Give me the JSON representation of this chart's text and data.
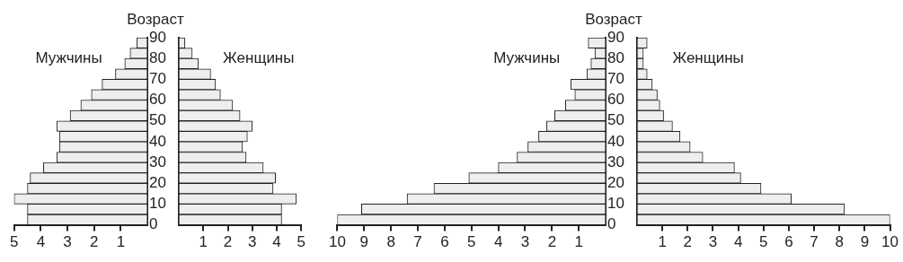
{
  "chart_data": [
    {
      "type": "histogram",
      "orientation": "horizontal",
      "title": "Мужчины",
      "ylabel": "Возраст",
      "bins": [
        0,
        5,
        10,
        15,
        20,
        25,
        30,
        35,
        40,
        45,
        50,
        55,
        60,
        65,
        70,
        75,
        80,
        85,
        90
      ],
      "values": [
        4.5,
        4.5,
        5.0,
        4.5,
        4.4,
        3.9,
        3.4,
        3.3,
        3.3,
        3.4,
        2.9,
        2.5,
        2.1,
        1.7,
        1.2,
        0.85,
        0.65,
        0.4
      ],
      "color": "#eeeeee",
      "xlim": [
        5,
        0
      ],
      "xticks": [
        5,
        4,
        3,
        2,
        1
      ],
      "ylim": [
        0,
        90
      ],
      "yticks": [
        0,
        10,
        20,
        30,
        40,
        50,
        60,
        70,
        80,
        90
      ],
      "grid": false
    },
    {
      "type": "histogram",
      "orientation": "horizontal",
      "title": "Женщины",
      "bins": [
        0,
        5,
        10,
        15,
        20,
        25,
        30,
        35,
        40,
        45,
        50,
        55,
        60,
        65,
        70,
        75,
        80,
        85,
        90
      ],
      "values": [
        4.2,
        4.2,
        4.8,
        3.85,
        3.95,
        3.45,
        2.75,
        2.6,
        2.8,
        3.0,
        2.5,
        2.2,
        1.7,
        1.5,
        1.3,
        0.8,
        0.55,
        0.25
      ],
      "color": "#eeeeee",
      "xlim": [
        0,
        5
      ],
      "xticks": [
        1,
        2,
        3,
        4,
        5
      ],
      "ylim": [
        0,
        90
      ],
      "tick_labels": "x",
      "grid": false
    },
    {
      "type": "histogram",
      "orientation": "horizontal",
      "title": "Мужчины",
      "ylabel": "Возраст",
      "bins": [
        0,
        5,
        10,
        15,
        20,
        25,
        30,
        35,
        40,
        45,
        50,
        55,
        60,
        65,
        70,
        75,
        80,
        85,
        90
      ],
      "values": [
        10.0,
        9.1,
        7.4,
        6.4,
        5.1,
        4.0,
        3.3,
        2.9,
        2.5,
        2.2,
        1.9,
        1.5,
        1.15,
        1.3,
        0.7,
        0.55,
        0.4,
        0.65
      ],
      "color": "#eeeeee",
      "xlim": [
        10,
        0
      ],
      "xticks": [
        10,
        9,
        8,
        7,
        6,
        5,
        4,
        3,
        2,
        1
      ],
      "ylim": [
        0,
        90
      ],
      "yticks": [
        0,
        10,
        20,
        30,
        40,
        50,
        60,
        70,
        80,
        90
      ],
      "grid": false
    },
    {
      "type": "histogram",
      "orientation": "horizontal",
      "title": "Женщины",
      "bins": [
        0,
        5,
        10,
        15,
        20,
        25,
        30,
        35,
        40,
        45,
        50,
        55,
        60,
        65,
        70,
        75,
        80,
        85,
        90
      ],
      "values": [
        10.0,
        8.2,
        6.1,
        4.9,
        4.1,
        3.85,
        2.6,
        2.1,
        1.7,
        1.4,
        1.05,
        0.9,
        0.8,
        0.6,
        0.4,
        0.25,
        0.25,
        0.4
      ],
      "color": "#eeeeee",
      "xlim": [
        0,
        10
      ],
      "xticks": [
        1,
        2,
        3,
        4,
        5,
        6,
        7,
        8,
        9,
        10
      ],
      "ylim": [
        0,
        90
      ],
      "tick_labels": "x",
      "grid": false
    }
  ]
}
